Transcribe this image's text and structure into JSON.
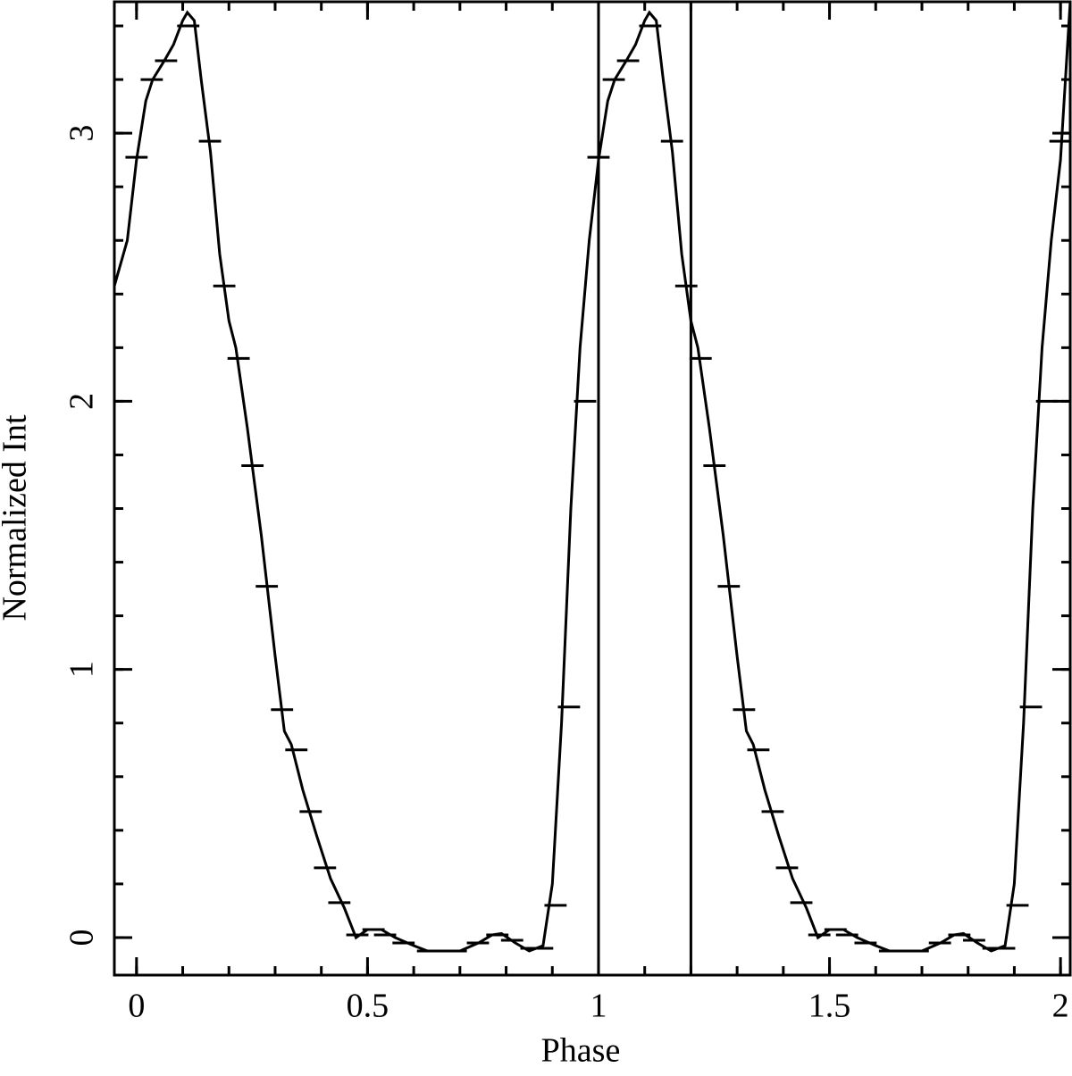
{
  "chart_data": {
    "type": "line",
    "xlabel": "Phase",
    "ylabel": "Normalized Int",
    "xlim": [
      -0.048,
      2.021
    ],
    "ylim": [
      -0.14,
      3.49
    ],
    "xticks": [
      0,
      0.5,
      1,
      1.5,
      2
    ],
    "yticks": [
      0,
      1,
      2,
      3
    ],
    "xminor_step": 0.1,
    "yminor_step": 0.2,
    "vlines": [
      1,
      1.2
    ],
    "color": "#000000",
    "series": [
      {
        "kind": "line",
        "x": [
          -0.048,
          -0.02,
          0,
          0.02,
          0.035,
          0.06,
          0.08,
          0.1,
          0.11,
          0.125,
          0.14,
          0.16,
          0.18,
          0.2,
          0.215,
          0.24,
          0.27,
          0.3,
          0.32,
          0.335,
          0.36,
          0.39,
          0.42,
          0.45,
          0.475,
          0.5,
          0.53,
          0.56,
          0.6,
          0.63,
          0.7,
          0.74,
          0.77,
          0.79,
          0.82,
          0.85,
          0.88,
          0.9,
          0.92,
          0.94,
          0.96,
          0.98,
          1,
          1.02,
          1.035,
          1.06,
          1.08,
          1.1,
          1.11,
          1.125,
          1.14,
          1.16,
          1.18,
          1.2,
          1.215,
          1.24,
          1.27,
          1.3,
          1.32,
          1.335,
          1.36,
          1.39,
          1.42,
          1.45,
          1.475,
          1.5,
          1.53,
          1.56,
          1.6,
          1.63,
          1.7,
          1.74,
          1.77,
          1.79,
          1.82,
          1.85,
          1.88,
          1.9,
          1.92,
          1.94,
          1.96,
          1.98,
          2,
          2.021
        ],
        "values": [
          2.43,
          2.6,
          2.9,
          3.12,
          3.2,
          3.27,
          3.33,
          3.42,
          3.45,
          3.42,
          3.2,
          2.93,
          2.55,
          2.3,
          2.2,
          1.9,
          1.5,
          1.05,
          0.77,
          0.72,
          0.55,
          0.38,
          0.22,
          0.11,
          0,
          0.03,
          0.03,
          0,
          -0.03,
          -0.05,
          -0.05,
          -0.02,
          0.01,
          0.015,
          -0.02,
          -0.05,
          -0.03,
          0.2,
          0.8,
          1.6,
          2.2,
          2.6,
          2.9,
          3.12,
          3.2,
          3.27,
          3.33,
          3.42,
          3.45,
          3.42,
          3.2,
          2.93,
          2.55,
          2.3,
          2.2,
          1.9,
          1.5,
          1.05,
          0.77,
          0.72,
          0.55,
          0.38,
          0.22,
          0.11,
          0,
          0.03,
          0.03,
          0,
          -0.03,
          -0.05,
          -0.05,
          -0.02,
          0.01,
          0.015,
          -0.02,
          -0.05,
          -0.03,
          0.2,
          0.8,
          1.6,
          2.2,
          2.6,
          2.9,
          3.49
        ]
      },
      {
        "kind": "bins",
        "xerr": 0.024,
        "x": [
          0,
          0.033,
          0.064,
          0.112,
          0.159,
          0.19,
          0.221,
          0.251,
          0.282,
          0.315,
          0.346,
          0.377,
          0.408,
          0.439,
          0.478,
          0.513,
          0.538,
          0.578,
          0.631,
          0.691,
          0.739,
          0.781,
          0.813,
          0.855,
          0.878,
          0.907,
          0.936,
          0.971,
          1,
          1.033,
          1.064,
          1.112,
          1.159,
          1.19,
          1.221,
          1.251,
          1.282,
          1.315,
          1.346,
          1.377,
          1.408,
          1.439,
          1.478,
          1.513,
          1.538,
          1.578,
          1.631,
          1.691,
          1.739,
          1.781,
          1.813,
          1.855,
          1.878,
          1.907,
          1.936,
          1.971,
          2
        ],
        "values": [
          2.91,
          3.2,
          3.27,
          3.4,
          2.97,
          2.43,
          2.16,
          1.76,
          1.31,
          0.85,
          0.7,
          0.47,
          0.26,
          0.13,
          0.01,
          0.03,
          0.01,
          -0.02,
          -0.05,
          -0.05,
          -0.02,
          0.01,
          -0.01,
          -0.04,
          -0.04,
          0.12,
          0.86,
          2,
          2.91,
          3.2,
          3.27,
          3.4,
          2.97,
          2.43,
          2.16,
          1.76,
          1.31,
          0.85,
          0.7,
          0.47,
          0.26,
          0.13,
          0.01,
          0.03,
          0.01,
          -0.02,
          -0.05,
          -0.05,
          -0.02,
          0.01,
          -0.01,
          -0.04,
          -0.04,
          0.12,
          0.86,
          2,
          2.97
        ]
      }
    ]
  }
}
